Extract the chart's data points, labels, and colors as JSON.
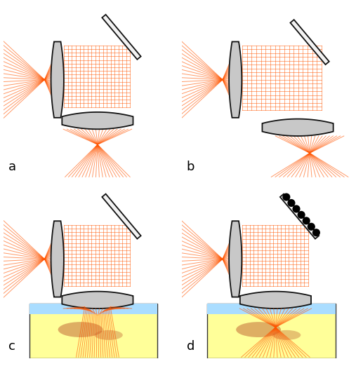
{
  "bg_color": "#ffffff",
  "ray_color": "#ff5500",
  "ray_alpha": 0.6,
  "ray_lw": 0.7,
  "lens_color": "#c8c8c8",
  "lens_ec": "#111111",
  "mirror_color": "#f0f0f0",
  "mirror_ec": "#111111",
  "label_fontsize": 13,
  "labels": [
    "a",
    "b",
    "c",
    "d"
  ],
  "n_rays": 20,
  "grid_n": 18
}
